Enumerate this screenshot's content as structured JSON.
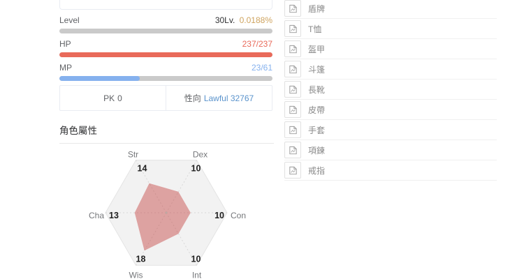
{
  "colors": {
    "hp": "#e96a5a",
    "mp": "#85b1ee",
    "level_percent": "#cfa45f",
    "alignment_link": "#5a93cc",
    "bar_track": "#cacaca",
    "radar_fill": "rgba(194,53,49,0.42)",
    "radar_grid_fill": "#f2f2f2"
  },
  "stats": {
    "level": {
      "label": "Level",
      "value": "30Lv.",
      "percent": "0.0188%",
      "fill_pct": 0.0188
    },
    "hp": {
      "label": "HP",
      "value": "237/237",
      "fill_pct": 100
    },
    "mp": {
      "label": "MP",
      "value": "23/61",
      "fill_pct": 37.7
    }
  },
  "pk": {
    "label": "PK",
    "value": "0"
  },
  "alignment": {
    "label": "性向",
    "value": "Lawful 32767"
  },
  "attributes_section": {
    "title": "角色屬性"
  },
  "chart_data": {
    "type": "radar",
    "title": "角色屬性",
    "indicators": [
      "Str",
      "Dex",
      "Con",
      "Int",
      "Wis",
      "Cha"
    ],
    "values": [
      14,
      10,
      10,
      10,
      18,
      13
    ],
    "range": [
      0,
      25
    ],
    "shape": "hexagon",
    "legend": "none",
    "grid": "filled-hexagon-with-dotted-spokes"
  },
  "equipment": {
    "items": [
      {
        "icon": "broken-image",
        "label": "盾牌"
      },
      {
        "icon": "broken-image",
        "label": "T恤"
      },
      {
        "icon": "broken-image",
        "label": "盔甲"
      },
      {
        "icon": "broken-image",
        "label": "斗篷"
      },
      {
        "icon": "broken-image",
        "label": "長靴"
      },
      {
        "icon": "broken-image",
        "label": "皮帶"
      },
      {
        "icon": "broken-image",
        "label": "手套"
      },
      {
        "icon": "broken-image",
        "label": "項鍊"
      },
      {
        "icon": "broken-image",
        "label": "戒指"
      }
    ]
  }
}
